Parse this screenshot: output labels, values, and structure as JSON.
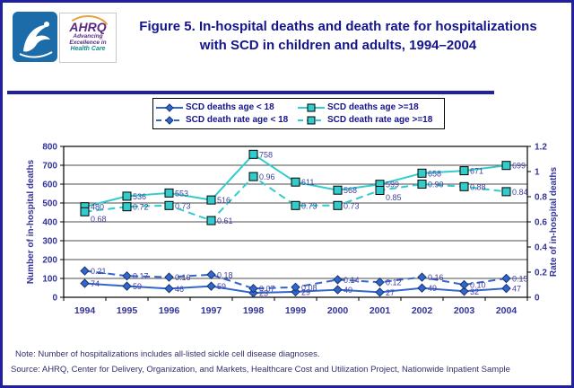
{
  "header": {
    "title_line1": "Figure 5. In-hospital deaths and death rate for hospitalizations",
    "title_line2": "with SCD in children and adults, 1994–2004",
    "logo": {
      "ahrq_acronym": "AHRQ",
      "tagline_line1": "Advancing",
      "tagline_line2": "Excellence in",
      "tagline_line3": "Health Care"
    }
  },
  "chart_data": {
    "type": "line",
    "title": "Figure 5. In-hospital deaths and death rate for hospitalizations with SCD in children and adults, 1994–2004",
    "categories": [
      "1994",
      "1995",
      "1996",
      "1997",
      "1998",
      "1999",
      "2000",
      "2001",
      "2002",
      "2003",
      "2004"
    ],
    "series": [
      {
        "name": "SCD deaths age < 18",
        "axis": "left",
        "style": "solid",
        "marker": "diamond",
        "color": "#3366cc",
        "values": [
          74,
          59,
          46,
          59,
          23,
          29,
          40,
          27,
          49,
          32,
          47
        ]
      },
      {
        "name": "SCD deaths age >=18",
        "axis": "left",
        "style": "solid",
        "marker": "square",
        "color": "#33cccc",
        "values": [
          480,
          536,
          553,
          516,
          758,
          611,
          568,
          599,
          658,
          671,
          699
        ]
      },
      {
        "name": "SCD death rate age < 18",
        "axis": "right",
        "style": "dashed",
        "marker": "diamond",
        "color": "#3366cc",
        "labels": [
          "0.21",
          "0.17",
          "0.16",
          "0.18",
          "0.07",
          "0.08",
          "0.14",
          "0.12",
          "0.16",
          "0.10",
          "0.15"
        ]
      },
      {
        "name": "SCD death rate age >=18",
        "axis": "right",
        "style": "dashed",
        "marker": "square",
        "color": "#33cccc",
        "labels": [
          "0.68",
          "0.72",
          "0.73",
          "0.61",
          "0.96",
          "0.73",
          "0.73",
          "0.85",
          "0.90",
          "0.88",
          "0.84"
        ]
      }
    ],
    "ylabel_left": "Number of in-hospital deaths",
    "ylabel_right": "Rate of in-hospital deaths",
    "ylim_left": [
      0,
      800
    ],
    "ytick_left": 100,
    "ylim_right": [
      0,
      1.2
    ],
    "ytick_right": 0.2,
    "grid": true,
    "legend_position": "top"
  },
  "notes": {
    "note": "Note: Number of hospitalizations includes all-listed sickle cell disease diagnoses.",
    "source": "Source: AHRQ, Center for Delivery, Organization, and Markets, Healthcare Cost and Utilization Project, Nationwide Inpatient Sample"
  },
  "colors": {
    "accent_navy": "#14148c",
    "rule_navy": "#2121a0",
    "tick_label": "#333399",
    "data_label": "#4040a0",
    "series_blue": "#3366cc",
    "series_teal": "#33cccc",
    "hhs_blue": "#1b6ca8",
    "ahrq_purple": "#5a2a82",
    "ahrq_teal": "#0e8d8d",
    "ahrq_arc_orange": "#e8a33d"
  }
}
